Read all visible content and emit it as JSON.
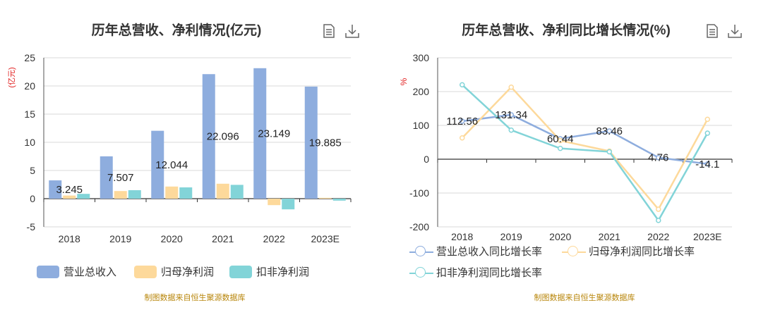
{
  "colors": {
    "revenue": "#8eadde",
    "parent_profit": "#fdd99b",
    "deducted_profit": "#82d4d8",
    "axis_red": "#e11d1d",
    "source": "#b8860b"
  },
  "icons": {
    "data_view": "document-icon",
    "download": "download-icon"
  },
  "left": {
    "title": "历年总营收、净利情况(亿元)",
    "unit_label": "(亿元)",
    "source": "制图数据来自恒生聚源数据库",
    "legend": [
      "营业总收入",
      "归母净利润",
      "扣非净利润"
    ]
  },
  "right": {
    "title": "历年总营收、净利同比增长情况(%)",
    "unit_label": "%",
    "source": "制图数据来自恒生聚源数据库",
    "legend": [
      "营业总收入同比增长率",
      "归母净利润同比增长率",
      "扣非净利润同比增长率"
    ]
  },
  "chart_data": [
    {
      "type": "bar",
      "title": "历年总营收、净利情况(亿元)",
      "ylabel": "(亿元)",
      "categories": [
        "2018",
        "2019",
        "2020",
        "2021",
        "2022",
        "2023E"
      ],
      "ylim": [
        -5,
        25
      ],
      "yticks": [
        -5,
        0,
        5,
        10,
        15,
        20,
        25
      ],
      "grid": true,
      "legend_position": "bottom",
      "series": [
        {
          "name": "营业总收入",
          "values": [
            3.245,
            7.507,
            12.044,
            22.096,
            23.149,
            19.885
          ]
        },
        {
          "name": "归母净利润",
          "values": [
            0.55,
            1.35,
            2.15,
            2.65,
            -1.15,
            0.15
          ]
        },
        {
          "name": "扣非净利润",
          "values": [
            0.85,
            1.5,
            2.0,
            2.45,
            -1.9,
            -0.35
          ]
        }
      ],
      "data_labels": [
        "3.245",
        "7.507",
        "12.044",
        "22.096",
        "23.149",
        "19.885"
      ]
    },
    {
      "type": "line",
      "title": "历年总营收、净利同比增长情况(%)",
      "ylabel": "%",
      "categories": [
        "2018",
        "2019",
        "2020",
        "2021",
        "2022",
        "2023E"
      ],
      "ylim": [
        -200,
        300
      ],
      "yticks": [
        -200,
        -100,
        0,
        100,
        200,
        300
      ],
      "grid": true,
      "legend_position": "bottom",
      "series": [
        {
          "name": "营业总收入同比增长率",
          "values": [
            112.56,
            131.34,
            60.44,
            83.46,
            4.76,
            -14.1
          ]
        },
        {
          "name": "归母净利润同比增长率",
          "values": [
            63,
            213,
            55,
            24,
            -148,
            118
          ]
        },
        {
          "name": "扣非净利润同比增长率",
          "values": [
            220,
            86,
            32,
            22,
            -181,
            77
          ]
        }
      ],
      "data_labels": [
        "112.56",
        "131.34",
        "60.44",
        "83.46",
        "4.76",
        "-14.1"
      ]
    }
  ]
}
